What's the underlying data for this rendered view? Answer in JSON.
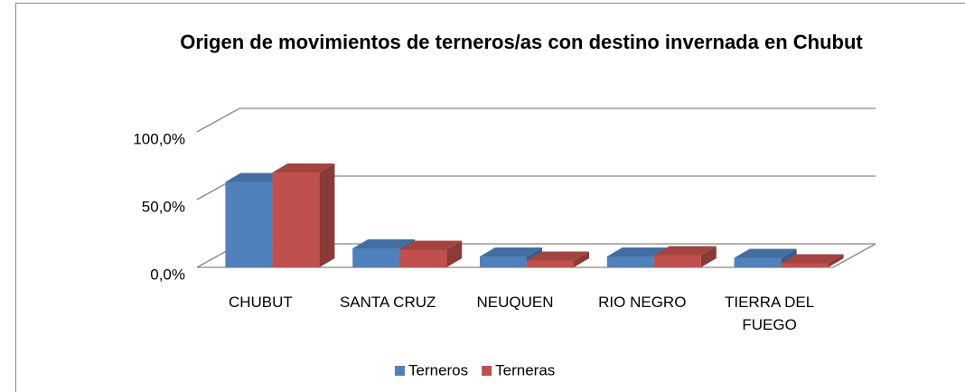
{
  "chart_data": {
    "type": "bar3d",
    "title": "Origen de movimientos de terneros/as con destino invernada en Chubut",
    "categories": [
      "CHUBUT",
      "SANTA CRUZ",
      "NEUQUEN",
      "RIO NEGRO",
      "TIERRA DEL FUEGO"
    ],
    "series": [
      {
        "name": "Terneros",
        "color": "#4f81bd",
        "values": [
          63,
          14,
          8,
          8,
          7
        ]
      },
      {
        "name": "Terneras",
        "color": "#c0504d",
        "values": [
          70,
          13,
          5,
          9,
          3
        ]
      }
    ],
    "ylim": [
      0,
      100
    ],
    "yticks": [
      {
        "value": 0,
        "label": "0,0%"
      },
      {
        "value": 50,
        "label": "50,0%"
      },
      {
        "value": 100,
        "label": "100,0%"
      }
    ],
    "grid": true,
    "legend": "bottom"
  }
}
